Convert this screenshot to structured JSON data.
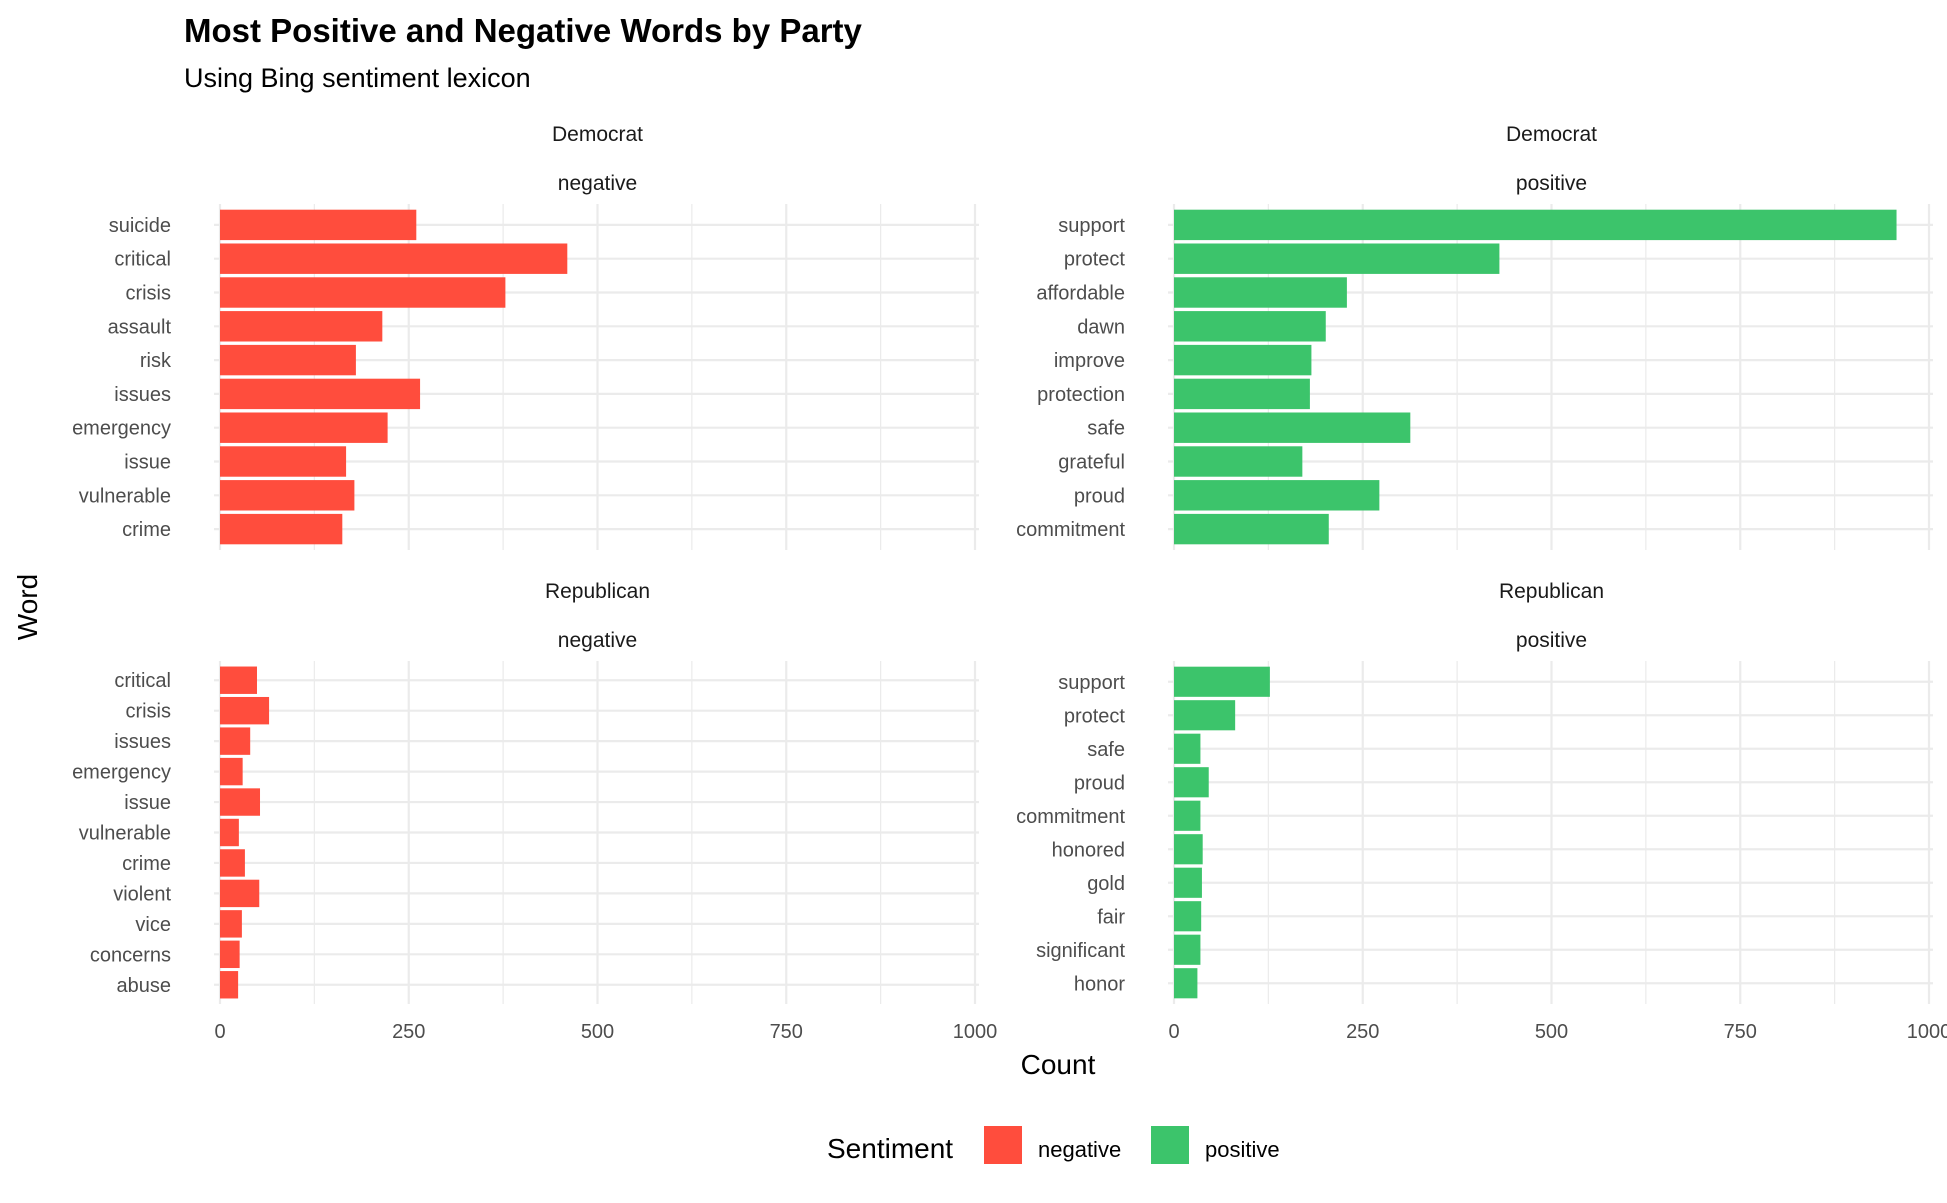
{
  "chart_data": {
    "type": "bar",
    "orientation": "horizontal",
    "title": "Most Positive and Negative Words by Party",
    "subtitle": "Using Bing sentiment lexicon",
    "xlabel": "Count",
    "ylabel": "Word",
    "xlim": [
      0,
      1000
    ],
    "xticks": [
      "0",
      "250",
      "500",
      "750",
      "1000"
    ],
    "grid": true,
    "legend": {
      "title": "Sentiment",
      "placement": "bottom",
      "entries": [
        {
          "label": "negative",
          "color": "#ff4d3d"
        },
        {
          "label": "positive",
          "color": "#3cc46b"
        }
      ]
    },
    "panels": [
      {
        "party": "Democrat",
        "sentiment": "negative",
        "color": "#ff4d3d",
        "categories": [
          "suicide",
          "critical",
          "crisis",
          "assault",
          "risk",
          "issues",
          "emergency",
          "issue",
          "vulnerable",
          "crime"
        ],
        "values": [
          260,
          460,
          378,
          215,
          180,
          265,
          222,
          167,
          178,
          162
        ]
      },
      {
        "party": "Democrat",
        "sentiment": "positive",
        "color": "#3cc46b",
        "categories": [
          "support",
          "protect",
          "affordable",
          "dawn",
          "improve",
          "protection",
          "safe",
          "grateful",
          "proud",
          "commitment"
        ],
        "values": [
          957,
          431,
          229,
          201,
          182,
          180,
          313,
          170,
          272,
          205
        ]
      },
      {
        "party": "Republican",
        "sentiment": "negative",
        "color": "#ff4d3d",
        "categories": [
          "critical",
          "crisis",
          "issues",
          "emergency",
          "issue",
          "vulnerable",
          "crime",
          "violent",
          "vice",
          "concerns",
          "abuse"
        ],
        "values": [
          49,
          65,
          40,
          30,
          53,
          25,
          33,
          52,
          29,
          26,
          24
        ]
      },
      {
        "party": "Republican",
        "sentiment": "positive",
        "color": "#3cc46b",
        "categories": [
          "support",
          "protect",
          "safe",
          "proud",
          "commitment",
          "honored",
          "gold",
          "fair",
          "significant",
          "honor"
        ],
        "values": [
          127,
          81,
          35,
          46,
          35,
          38,
          37,
          36,
          35,
          31
        ]
      }
    ]
  }
}
